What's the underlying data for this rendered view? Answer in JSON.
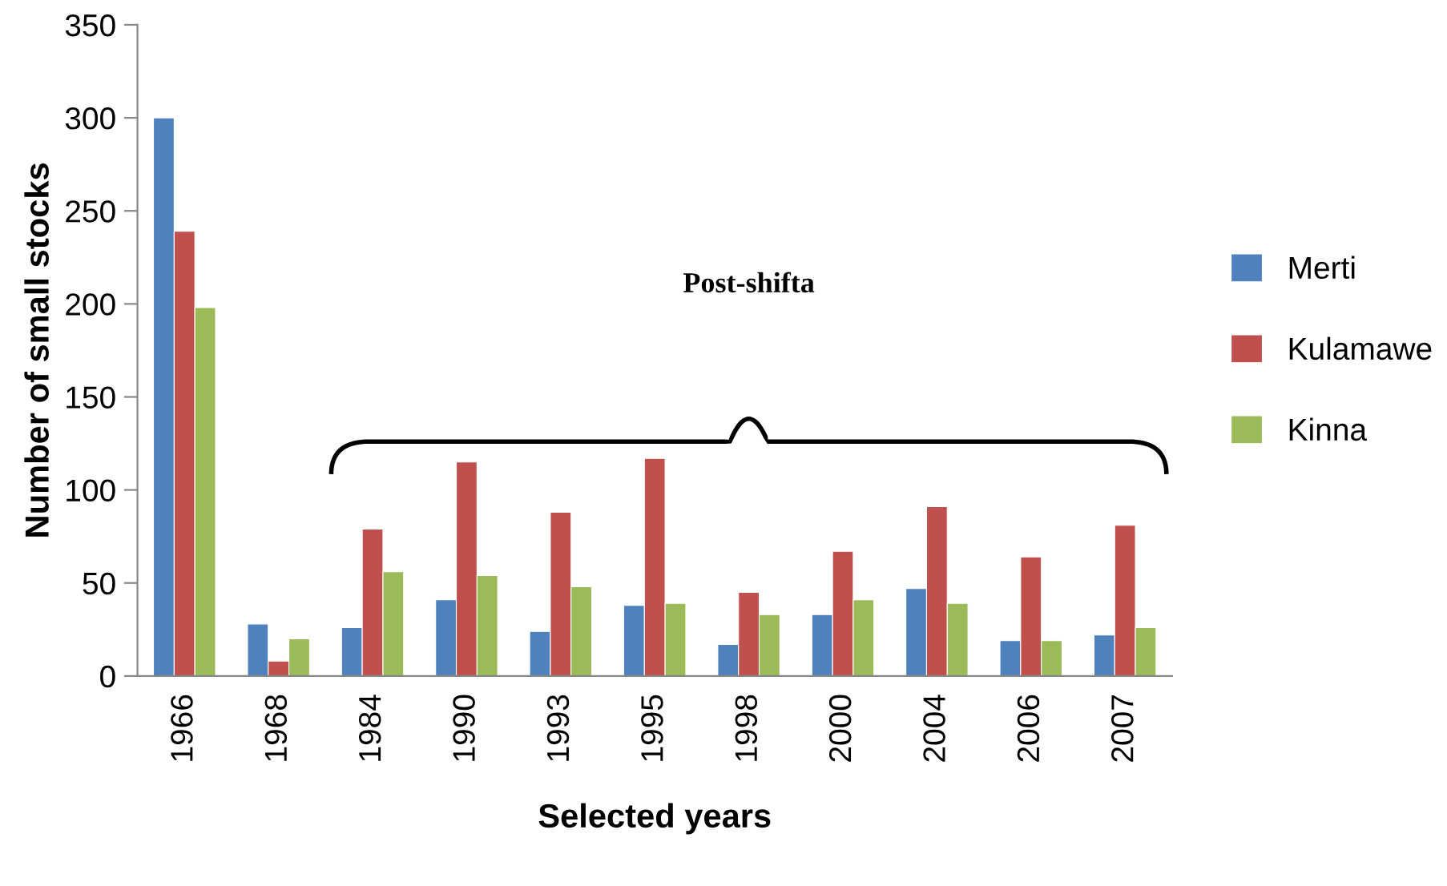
{
  "chart_data": {
    "type": "bar",
    "xlabel": "Selected years",
    "ylabel": "Number of small stocks",
    "categories": [
      "1966",
      "1968",
      "1984",
      "1990",
      "1993",
      "1995",
      "1998",
      "2000",
      "2004",
      "2006",
      "2007"
    ],
    "series": [
      {
        "name": "Merti",
        "color": "#4f81bd",
        "values": [
          300,
          28,
          26,
          41,
          24,
          38,
          17,
          33,
          47,
          19,
          22
        ]
      },
      {
        "name": "Kulamawe",
        "color": "#c0504d",
        "values": [
          239,
          8,
          79,
          115,
          88,
          117,
          45,
          67,
          91,
          64,
          81
        ]
      },
      {
        "name": "Kinna",
        "color": "#9bbb59",
        "values": [
          198,
          20,
          56,
          54,
          48,
          39,
          33,
          41,
          39,
          19,
          26
        ]
      }
    ],
    "annotations": [
      "Post-shifta"
    ],
    "ylim": [
      0,
      350
    ],
    "yticks": [
      0,
      50,
      100,
      150,
      200,
      250,
      300,
      350
    ],
    "grid": false,
    "legend": "right"
  }
}
